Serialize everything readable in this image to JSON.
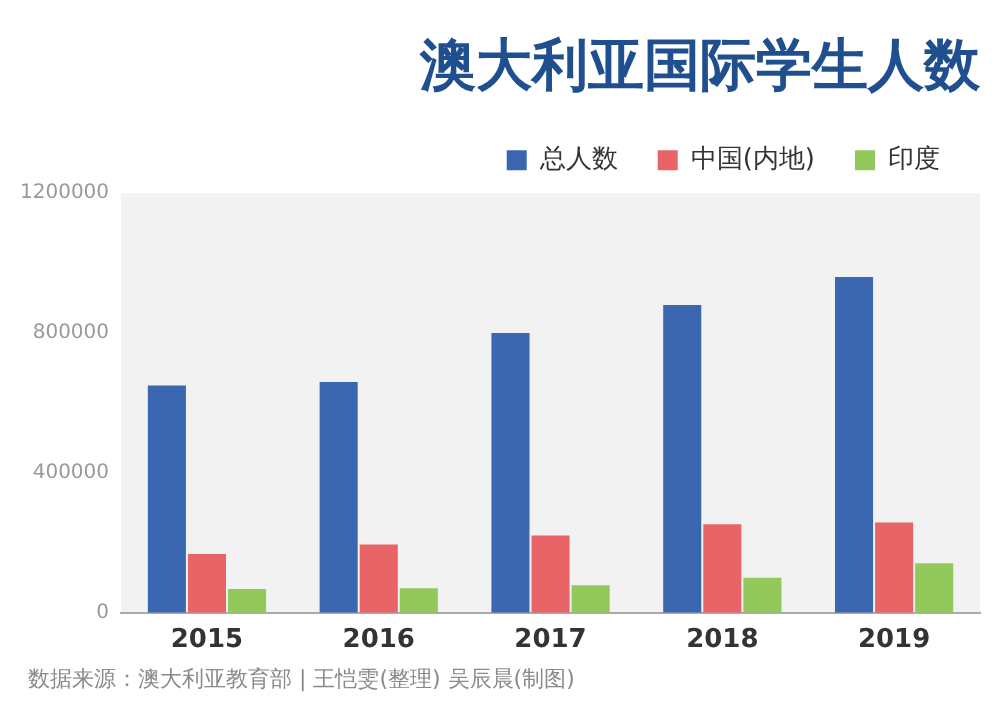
{
  "chart_data": {
    "type": "bar",
    "title": "澳大利亚国际学生人数",
    "categories": [
      "2015",
      "2016",
      "2017",
      "2018",
      "2019"
    ],
    "series": [
      {
        "name": "总人数",
        "color": "#3b67b1",
        "values": [
          650000,
          660000,
          800000,
          880000,
          960000
        ]
      },
      {
        "name": "中国(内地)",
        "color": "#e86467",
        "values": [
          168000,
          195000,
          221000,
          253000,
          258000
        ]
      },
      {
        "name": "印度",
        "color": "#93c95b",
        "values": [
          68000,
          70000,
          79000,
          100000,
          142000
        ]
      }
    ],
    "ylim": [
      0,
      1200000
    ],
    "yticks": [
      0,
      400000,
      800000,
      1200000
    ],
    "grid": false,
    "legend": "top right",
    "annotations": [
      "数据来源：澳大利亚教育部 | 王恺雯(整理) 吴辰晨(制图)"
    ]
  }
}
